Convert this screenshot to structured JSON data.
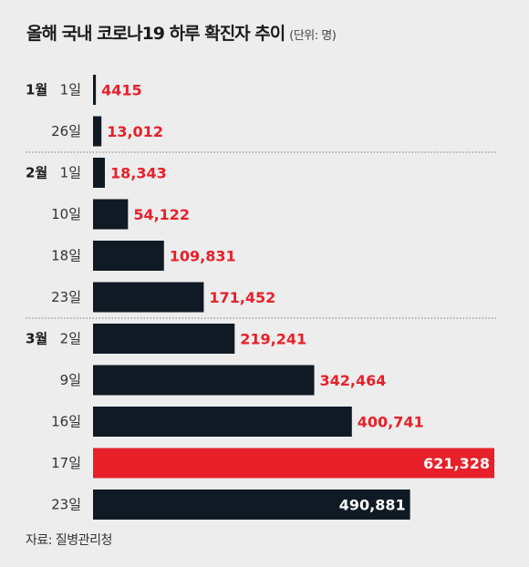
{
  "header": {
    "title": "올해 국내 코로나19 하루 확진자 추이",
    "unit": "(단위: 명)"
  },
  "footer": {
    "source": "자료: 질병관리청"
  },
  "colors": {
    "background": "#ededed",
    "bar": "#0f1a24",
    "highlight": "#e8202a",
    "value_text": "#e8202a",
    "value_text_inside": "#ffffff"
  },
  "chart_data": {
    "type": "bar",
    "orientation": "horizontal",
    "groups": [
      {
        "month": "1월",
        "days": [
          "1일",
          "26일"
        ]
      },
      {
        "month": "2월",
        "days": [
          "1일",
          "10일",
          "18일",
          "23일"
        ]
      },
      {
        "month": "3월",
        "days": [
          "2일",
          "9일",
          "16일",
          "17일",
          "23일"
        ]
      }
    ],
    "values": [
      4415,
      13012,
      18343,
      54122,
      109831,
      171452,
      219241,
      342464,
      400741,
      621328,
      490881
    ],
    "value_labels": [
      "4415",
      "13,012",
      "18,343",
      "54,122",
      "109,831",
      "171,452",
      "219,241",
      "342,464",
      "400,741",
      "621,328",
      "490,881"
    ],
    "highlight_index": 9,
    "labels_inside_indices": [
      9,
      10
    ],
    "xlim": [
      0,
      621328
    ],
    "grid": false,
    "group_separators": "dotted"
  }
}
